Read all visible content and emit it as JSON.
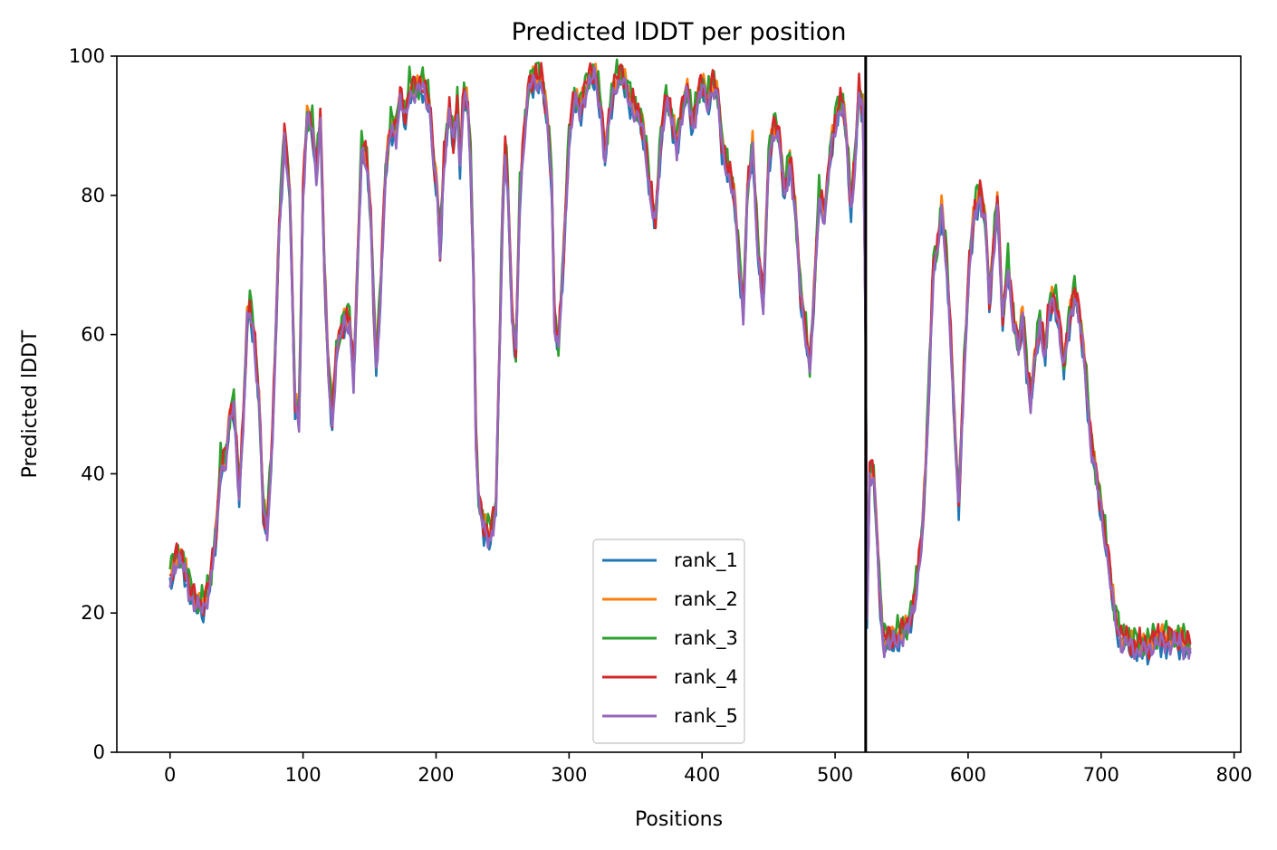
{
  "chart_data": {
    "type": "line",
    "title": "Predicted lDDT per position",
    "xlabel": "Positions",
    "ylabel": "Predicted lDDT",
    "xlim": [
      -40,
      805
    ],
    "ylim": [
      0,
      100
    ],
    "xticks": [
      0,
      100,
      200,
      300,
      400,
      500,
      600,
      700,
      800
    ],
    "yticks": [
      0,
      20,
      40,
      60,
      80,
      100
    ],
    "legend_position": "lower center",
    "vline": 523,
    "series": [
      {
        "name": "rank_1",
        "color": "#1f77b4",
        "offset": -0.6,
        "amp": 1.8
      },
      {
        "name": "rank_2",
        "color": "#ff7f0e",
        "offset": 0.6,
        "amp": 1.6
      },
      {
        "name": "rank_3",
        "color": "#2ca02c",
        "offset": 0.9,
        "amp": 2.0
      },
      {
        "name": "rank_4",
        "color": "#d62728",
        "offset": 0.5,
        "amp": 1.9
      },
      {
        "name": "rank_5",
        "color": "#9467bd",
        "offset": -0.4,
        "amp": 1.5
      }
    ],
    "base_profile": [
      [
        0,
        25
      ],
      [
        5,
        28
      ],
      [
        10,
        27
      ],
      [
        15,
        23
      ],
      [
        20,
        21
      ],
      [
        25,
        21
      ],
      [
        30,
        24
      ],
      [
        35,
        32
      ],
      [
        38,
        41
      ],
      [
        42,
        42
      ],
      [
        45,
        48
      ],
      [
        48,
        50
      ],
      [
        52,
        37
      ],
      [
        55,
        47
      ],
      [
        58,
        62
      ],
      [
        60,
        64
      ],
      [
        63,
        60
      ],
      [
        67,
        50
      ],
      [
        70,
        35
      ],
      [
        73,
        32
      ],
      [
        77,
        45
      ],
      [
        82,
        75
      ],
      [
        86,
        89
      ],
      [
        90,
        80
      ],
      [
        94,
        50
      ],
      [
        97,
        48
      ],
      [
        100,
        80
      ],
      [
        103,
        91
      ],
      [
        107,
        90
      ],
      [
        110,
        83
      ],
      [
        113,
        91
      ],
      [
        116,
        70
      ],
      [
        119,
        55
      ],
      [
        122,
        47
      ],
      [
        125,
        57
      ],
      [
        128,
        60
      ],
      [
        131,
        62
      ],
      [
        135,
        62
      ],
      [
        138,
        53
      ],
      [
        141,
        70
      ],
      [
        144,
        87
      ],
      [
        148,
        85
      ],
      [
        151,
        76
      ],
      [
        155,
        55
      ],
      [
        158,
        65
      ],
      [
        162,
        83
      ],
      [
        166,
        90
      ],
      [
        170,
        89
      ],
      [
        173,
        94
      ],
      [
        177,
        91
      ],
      [
        180,
        95
      ],
      [
        185,
        95
      ],
      [
        190,
        96
      ],
      [
        195,
        93
      ],
      [
        198,
        85
      ],
      [
        201,
        80
      ],
      [
        203,
        72
      ],
      [
        206,
        85
      ],
      [
        210,
        92
      ],
      [
        213,
        88
      ],
      [
        216,
        93
      ],
      [
        218,
        84
      ],
      [
        221,
        95
      ],
      [
        224,
        92
      ],
      [
        226,
        85
      ],
      [
        228,
        70
      ],
      [
        230,
        45
      ],
      [
        232,
        36
      ],
      [
        236,
        32
      ],
      [
        241,
        31
      ],
      [
        245,
        35
      ],
      [
        248,
        60
      ],
      [
        250,
        78
      ],
      [
        252,
        87
      ],
      [
        254,
        81
      ],
      [
        257,
        63
      ],
      [
        260,
        57
      ],
      [
        263,
        80
      ],
      [
        266,
        88
      ],
      [
        270,
        96
      ],
      [
        275,
        97
      ],
      [
        280,
        96
      ],
      [
        284,
        90
      ],
      [
        287,
        82
      ],
      [
        289,
        62
      ],
      [
        292,
        58
      ],
      [
        296,
        72
      ],
      [
        300,
        88
      ],
      [
        304,
        94
      ],
      [
        308,
        92
      ],
      [
        312,
        95
      ],
      [
        316,
        97
      ],
      [
        320,
        97
      ],
      [
        324,
        92
      ],
      [
        327,
        85
      ],
      [
        330,
        91
      ],
      [
        334,
        96
      ],
      [
        340,
        97
      ],
      [
        345,
        94
      ],
      [
        350,
        92
      ],
      [
        355,
        90
      ],
      [
        358,
        86
      ],
      [
        361,
        80
      ],
      [
        365,
        76
      ],
      [
        369,
        88
      ],
      [
        373,
        94
      ],
      [
        377,
        91
      ],
      [
        381,
        87
      ],
      [
        385,
        92
      ],
      [
        389,
        95
      ],
      [
        393,
        90
      ],
      [
        397,
        94
      ],
      [
        400,
        96
      ],
      [
        404,
        93
      ],
      [
        408,
        96
      ],
      [
        412,
        94
      ],
      [
        415,
        87
      ],
      [
        420,
        83
      ],
      [
        424,
        80
      ],
      [
        428,
        70
      ],
      [
        431,
        63
      ],
      [
        434,
        80
      ],
      [
        438,
        87
      ],
      [
        442,
        72
      ],
      [
        446,
        64
      ],
      [
        450,
        85
      ],
      [
        454,
        90
      ],
      [
        458,
        88
      ],
      [
        462,
        80
      ],
      [
        466,
        85
      ],
      [
        470,
        78
      ],
      [
        474,
        66
      ],
      [
        478,
        60
      ],
      [
        481,
        55
      ],
      [
        484,
        65
      ],
      [
        488,
        80
      ],
      [
        492,
        77
      ],
      [
        497,
        87
      ],
      [
        502,
        92
      ],
      [
        506,
        93
      ],
      [
        509,
        87
      ],
      [
        512,
        78
      ],
      [
        515,
        85
      ],
      [
        518,
        95
      ],
      [
        521,
        92
      ],
      [
        523,
        60
      ],
      [
        524,
        20
      ],
      [
        526,
        40
      ],
      [
        529,
        40
      ],
      [
        533,
        25
      ],
      [
        536,
        16
      ],
      [
        540,
        16
      ],
      [
        545,
        16
      ],
      [
        550,
        17
      ],
      [
        555,
        18
      ],
      [
        560,
        22
      ],
      [
        565,
        30
      ],
      [
        568,
        40
      ],
      [
        571,
        55
      ],
      [
        574,
        70
      ],
      [
        577,
        72
      ],
      [
        580,
        78
      ],
      [
        584,
        70
      ],
      [
        588,
        55
      ],
      [
        591,
        42
      ],
      [
        593,
        36
      ],
      [
        597,
        55
      ],
      [
        601,
        70
      ],
      [
        605,
        78
      ],
      [
        609,
        80
      ],
      [
        613,
        76
      ],
      [
        616,
        65
      ],
      [
        619,
        72
      ],
      [
        622,
        79
      ],
      [
        626,
        62
      ],
      [
        630,
        70
      ],
      [
        634,
        62
      ],
      [
        638,
        58
      ],
      [
        641,
        63
      ],
      [
        644,
        55
      ],
      [
        647,
        50
      ],
      [
        650,
        56
      ],
      [
        654,
        62
      ],
      [
        658,
        57
      ],
      [
        661,
        64
      ],
      [
        665,
        65
      ],
      [
        668,
        62
      ],
      [
        672,
        55
      ],
      [
        676,
        62
      ],
      [
        680,
        66
      ],
      [
        684,
        62
      ],
      [
        688,
        55
      ],
      [
        692,
        45
      ],
      [
        696,
        40
      ],
      [
        700,
        35
      ],
      [
        705,
        28
      ],
      [
        710,
        20
      ],
      [
        715,
        16
      ],
      [
        720,
        16
      ],
      [
        725,
        15
      ],
      [
        730,
        15
      ],
      [
        735,
        15
      ],
      [
        740,
        16
      ],
      [
        745,
        16
      ],
      [
        750,
        16
      ],
      [
        755,
        16
      ],
      [
        760,
        16
      ],
      [
        765,
        15
      ],
      [
        767,
        15
      ]
    ]
  }
}
